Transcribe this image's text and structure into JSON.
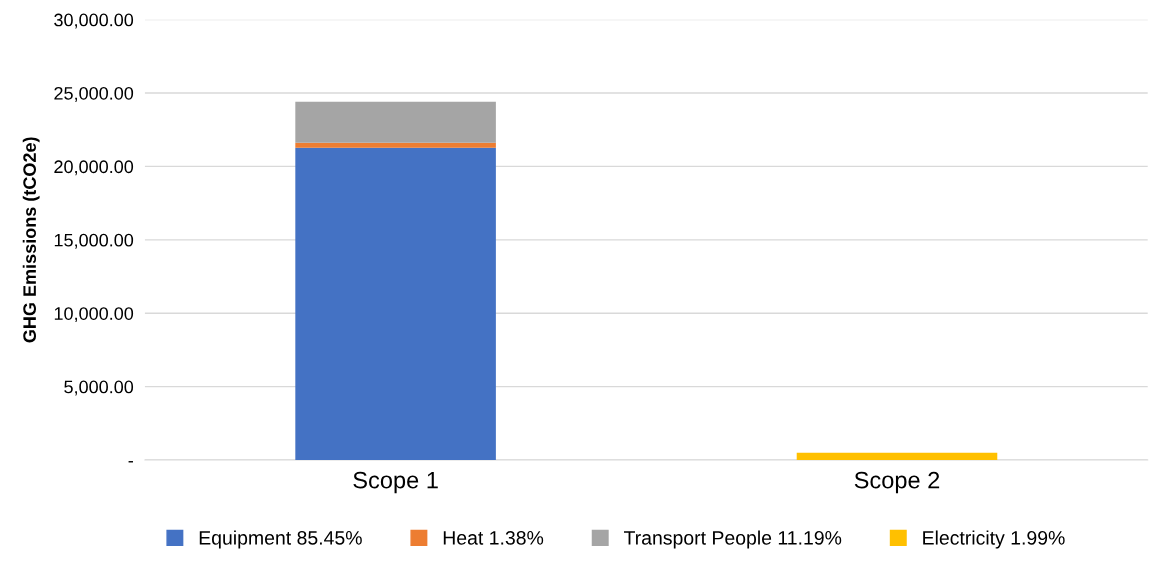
{
  "chart_data": {
    "type": "bar",
    "stacked": true,
    "ylabel": "GHG Emissions (tCO2e)",
    "categories": [
      "Scope 1",
      "Scope 2"
    ],
    "series": [
      {
        "name": "Equipment 85.45%",
        "color": "#4472c4",
        "values": [
          21280,
          null
        ]
      },
      {
        "name": "Heat 1.38%",
        "color": "#ed7d31",
        "values": [
          340,
          null
        ]
      },
      {
        "name": "Transport People 11.19%",
        "color": "#a5a5a5",
        "values": [
          2790,
          null
        ]
      },
      {
        "name": "Electricity 1.99%",
        "color": "#ffc000",
        "values": [
          null,
          500
        ]
      }
    ],
    "ylim": [
      0,
      30000
    ],
    "yticks": [
      {
        "value": 0,
        "label": "-"
      },
      {
        "value": 5000,
        "label": "5,000.00"
      },
      {
        "value": 10000,
        "label": "10,000.00"
      },
      {
        "value": 15000,
        "label": "15,000.00"
      },
      {
        "value": 20000,
        "label": "20,000.00"
      },
      {
        "value": 25000,
        "label": "25,000.00"
      },
      {
        "value": 30000,
        "label": "30,000.00"
      }
    ],
    "grid": "y",
    "legend": "bottom"
  }
}
